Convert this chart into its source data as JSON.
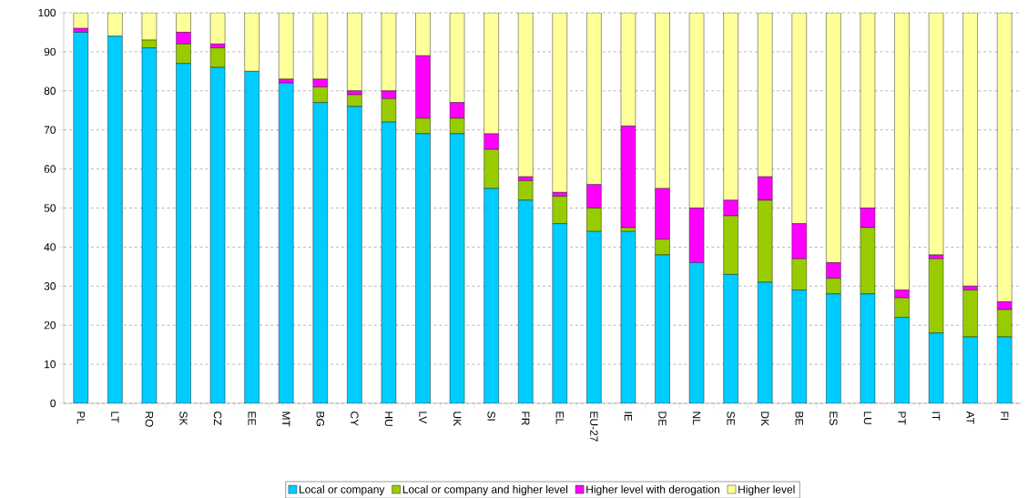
{
  "chart_data": {
    "type": "bar",
    "stacked": true,
    "categories": [
      "PL",
      "LT",
      "RO",
      "SK",
      "CZ",
      "EE",
      "MT",
      "BG",
      "CY",
      "HU",
      "LV",
      "UK",
      "SI",
      "FR",
      "EL",
      "EU-27",
      "IE",
      "DE",
      "NL",
      "SE",
      "DK",
      "BE",
      "ES",
      "LU",
      "PT",
      "IT",
      "AT",
      "FI"
    ],
    "series": [
      {
        "name": "Local or company",
        "color": "#00ccff",
        "values": [
          95,
          94,
          91,
          87,
          86,
          85,
          82,
          77,
          76,
          72,
          69,
          69,
          55,
          52,
          46,
          44,
          44,
          38,
          36,
          33,
          31,
          29,
          28,
          28,
          22,
          18,
          17,
          17
        ]
      },
      {
        "name": "Local or company and higher level",
        "color": "#99cc00",
        "values": [
          0,
          0,
          2,
          5,
          5,
          0,
          0,
          4,
          3,
          6,
          4,
          4,
          10,
          5,
          7,
          6,
          1,
          4,
          0,
          15,
          21,
          8,
          4,
          17,
          5,
          19,
          12,
          7
        ]
      },
      {
        "name": "Higher level with derogation",
        "color": "#ff00ff",
        "values": [
          1,
          0,
          0,
          3,
          1,
          0,
          1,
          2,
          1,
          2,
          16,
          4,
          4,
          1,
          1,
          6,
          26,
          13,
          14,
          4,
          6,
          9,
          4,
          5,
          2,
          1,
          1,
          2
        ]
      },
      {
        "name": "Higher level",
        "color": "#ffff99",
        "values": [
          4,
          6,
          7,
          5,
          8,
          15,
          17,
          17,
          20,
          20,
          11,
          23,
          31,
          42,
          46,
          44,
          29,
          45,
          50,
          48,
          42,
          54,
          64,
          50,
          71,
          62,
          70,
          74
        ]
      }
    ],
    "ylim": [
      0,
      100
    ],
    "yticks": [
      0,
      10,
      20,
      30,
      40,
      50,
      60,
      70,
      80,
      90,
      100
    ],
    "grid": "y",
    "legend": "bottom"
  }
}
